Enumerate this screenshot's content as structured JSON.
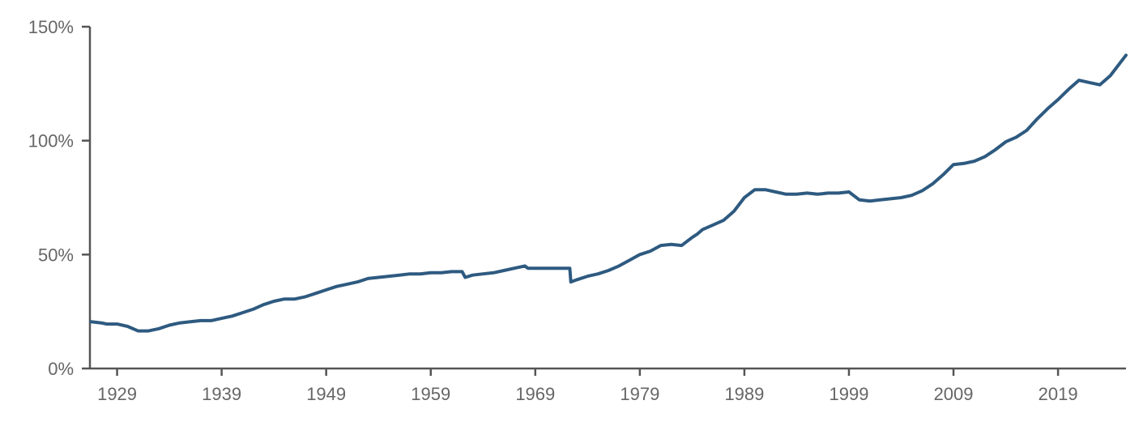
{
  "colors": {
    "series": "#2e5a80",
    "axis": "#555555",
    "tick_text": "#666666",
    "background": "#ffffff"
  },
  "chart_data": {
    "type": "line",
    "title": "",
    "xlabel": "",
    "ylabel": "",
    "grid": false,
    "legend": "none",
    "xlim": [
      1926.4,
      2025.5
    ],
    "ylim": [
      0,
      150
    ],
    "x_ticks": [
      1929,
      1939,
      1949,
      1959,
      1969,
      1979,
      1989,
      1999,
      2009,
      2019
    ],
    "x_tick_labels": [
      "1929",
      "1939",
      "1949",
      "1959",
      "1969",
      "1979",
      "1989",
      "1999",
      "2009",
      "2019"
    ],
    "y_ticks": [
      0,
      50,
      100,
      150
    ],
    "y_tick_labels": [
      "0%",
      "50%",
      "100%",
      "150%"
    ],
    "series": [
      {
        "x": [
          1926.5,
          1927.5,
          1928,
          1929,
          1930,
          1931,
          1932,
          1933,
          1934,
          1935,
          1936,
          1937,
          1938,
          1939,
          1940,
          1941,
          1942,
          1943,
          1944,
          1945,
          1946,
          1947,
          1948,
          1949,
          1950,
          1951,
          1952,
          1953,
          1954,
          1955,
          1956,
          1957,
          1958,
          1959,
          1960,
          1961,
          1962,
          1962.3,
          1963,
          1964,
          1965,
          1966,
          1967,
          1968,
          1968.3,
          1969,
          1970,
          1971,
          1972.3,
          1972.4,
          1973,
          1974,
          1975,
          1976,
          1977,
          1978,
          1979,
          1980,
          1981,
          1982,
          1983,
          1984,
          1984.5,
          1985,
          1986,
          1987,
          1988,
          1989,
          1990,
          1991,
          1992,
          1993,
          1994,
          1995,
          1996,
          1997,
          1998,
          1999,
          2000,
          2001,
          2002,
          2003,
          2004,
          2005,
          2006,
          2007,
          2008,
          2009,
          2010,
          2011,
          2012,
          2013,
          2014,
          2015,
          2016,
          2017,
          2018,
          2019,
          2020,
          2021,
          2022,
          2023,
          2024,
          2025.5
        ],
        "y": [
          20.5,
          20,
          19.5,
          19.5,
          18.5,
          16.5,
          16.5,
          17.5,
          19,
          20,
          20.5,
          21,
          21,
          22,
          23,
          24.5,
          26,
          28,
          29.5,
          30.5,
          30.5,
          31.5,
          33,
          34.5,
          36,
          37,
          38,
          39.5,
          40,
          40.5,
          41,
          41.5,
          41.5,
          42,
          42,
          42.5,
          42.5,
          40,
          41,
          41.5,
          42,
          43,
          44,
          45,
          44,
          44,
          44,
          44,
          44,
          38,
          39,
          40.5,
          41.5,
          43,
          45,
          47.5,
          50,
          51.5,
          54,
          54.5,
          54,
          57.5,
          59,
          61,
          63,
          65,
          69,
          75,
          78.5,
          78.5,
          77.5,
          76.5,
          76.5,
          77,
          76.5,
          77,
          77,
          77.5,
          74,
          73.5,
          74,
          74.5,
          75,
          76,
          78,
          81,
          85,
          89.5,
          90,
          91,
          93,
          96,
          99.5,
          101.5,
          104.5,
          109.5,
          114,
          118,
          122.5,
          126.5,
          125.5,
          124.5,
          128.5,
          137.5
        ]
      }
    ]
  }
}
